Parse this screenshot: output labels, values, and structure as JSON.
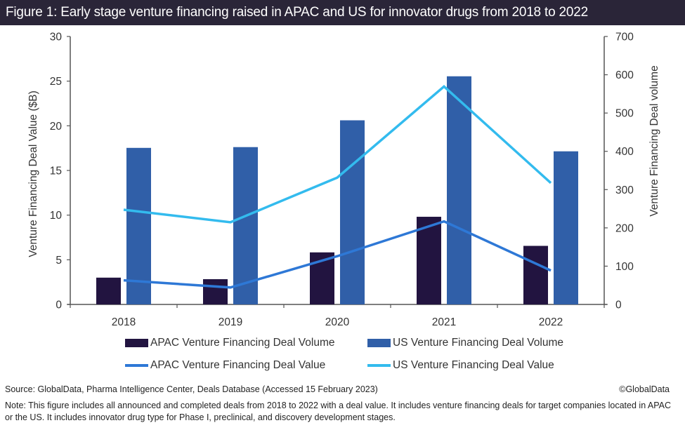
{
  "title": "Figure 1: Early stage venture financing raised in APAC and US for innovator drugs from 2018 to 2022",
  "colors": {
    "title_bg": "#2a2538",
    "apac_volume": "#221440",
    "us_volume": "#305fa8",
    "apac_value": "#2e78d6",
    "us_value": "#33bbee",
    "axis": "#555555"
  },
  "chart_data": {
    "type": "bar",
    "title": "Early stage venture financing raised in APAC and US for innovator drugs from 2018 to 2022",
    "categories": [
      "2018",
      "2019",
      "2020",
      "2021",
      "2022"
    ],
    "series": [
      {
        "name": "APAC Venture Financing Deal Volume",
        "kind": "bar",
        "axis": "right",
        "values": [
          70,
          66,
          136,
          229,
          153
        ]
      },
      {
        "name": "US Venture Financing Deal Volume",
        "kind": "bar",
        "axis": "right",
        "values": [
          409,
          411,
          481,
          596,
          400
        ]
      },
      {
        "name": "APAC Venture Financing Deal Value",
        "kind": "line",
        "axis": "left",
        "values": [
          2.7,
          1.9,
          5.4,
          9.3,
          3.8
        ]
      },
      {
        "name": "US Venture Financing Deal Value",
        "kind": "line",
        "axis": "left",
        "values": [
          10.6,
          9.2,
          14.2,
          24.4,
          13.6
        ]
      }
    ],
    "ylabel_left": "Venture Financing Deal Value ($B)",
    "ylabel_right": "Venture Financing Deal volume",
    "ylim_left": [
      0,
      30
    ],
    "ylim_right": [
      0,
      700
    ],
    "yticks_left": [
      "0",
      "5",
      "10",
      "15",
      "20",
      "25",
      "30"
    ],
    "yticks_right": [
      "0",
      "100",
      "200",
      "300",
      "400",
      "500",
      "600",
      "700"
    ],
    "grid": false,
    "legend_position": "bottom"
  },
  "legend": [
    {
      "label": "APAC Venture Financing Deal Volume",
      "type": "box",
      "color": "#221440"
    },
    {
      "label": "US Venture Financing Deal Volume",
      "type": "box",
      "color": "#305fa8"
    },
    {
      "label": "APAC Venture Financing Deal Value",
      "type": "line",
      "color": "#2e78d6"
    },
    {
      "label": "US Venture Financing Deal Value",
      "type": "line",
      "color": "#33bbee"
    }
  ],
  "footer": {
    "source": "Source: GlobalData, Pharma Intelligence Center, Deals Database (Accessed 15 February 2023)",
    "copyright": "©GlobalData",
    "note": "Note: This figure includes all announced and completed deals from 2018 to 2022 with a deal value. It includes venture financing deals for target companies located in APAC or the US. It includes innovator drug type for Phase I, preclinical, and discovery development stages."
  }
}
